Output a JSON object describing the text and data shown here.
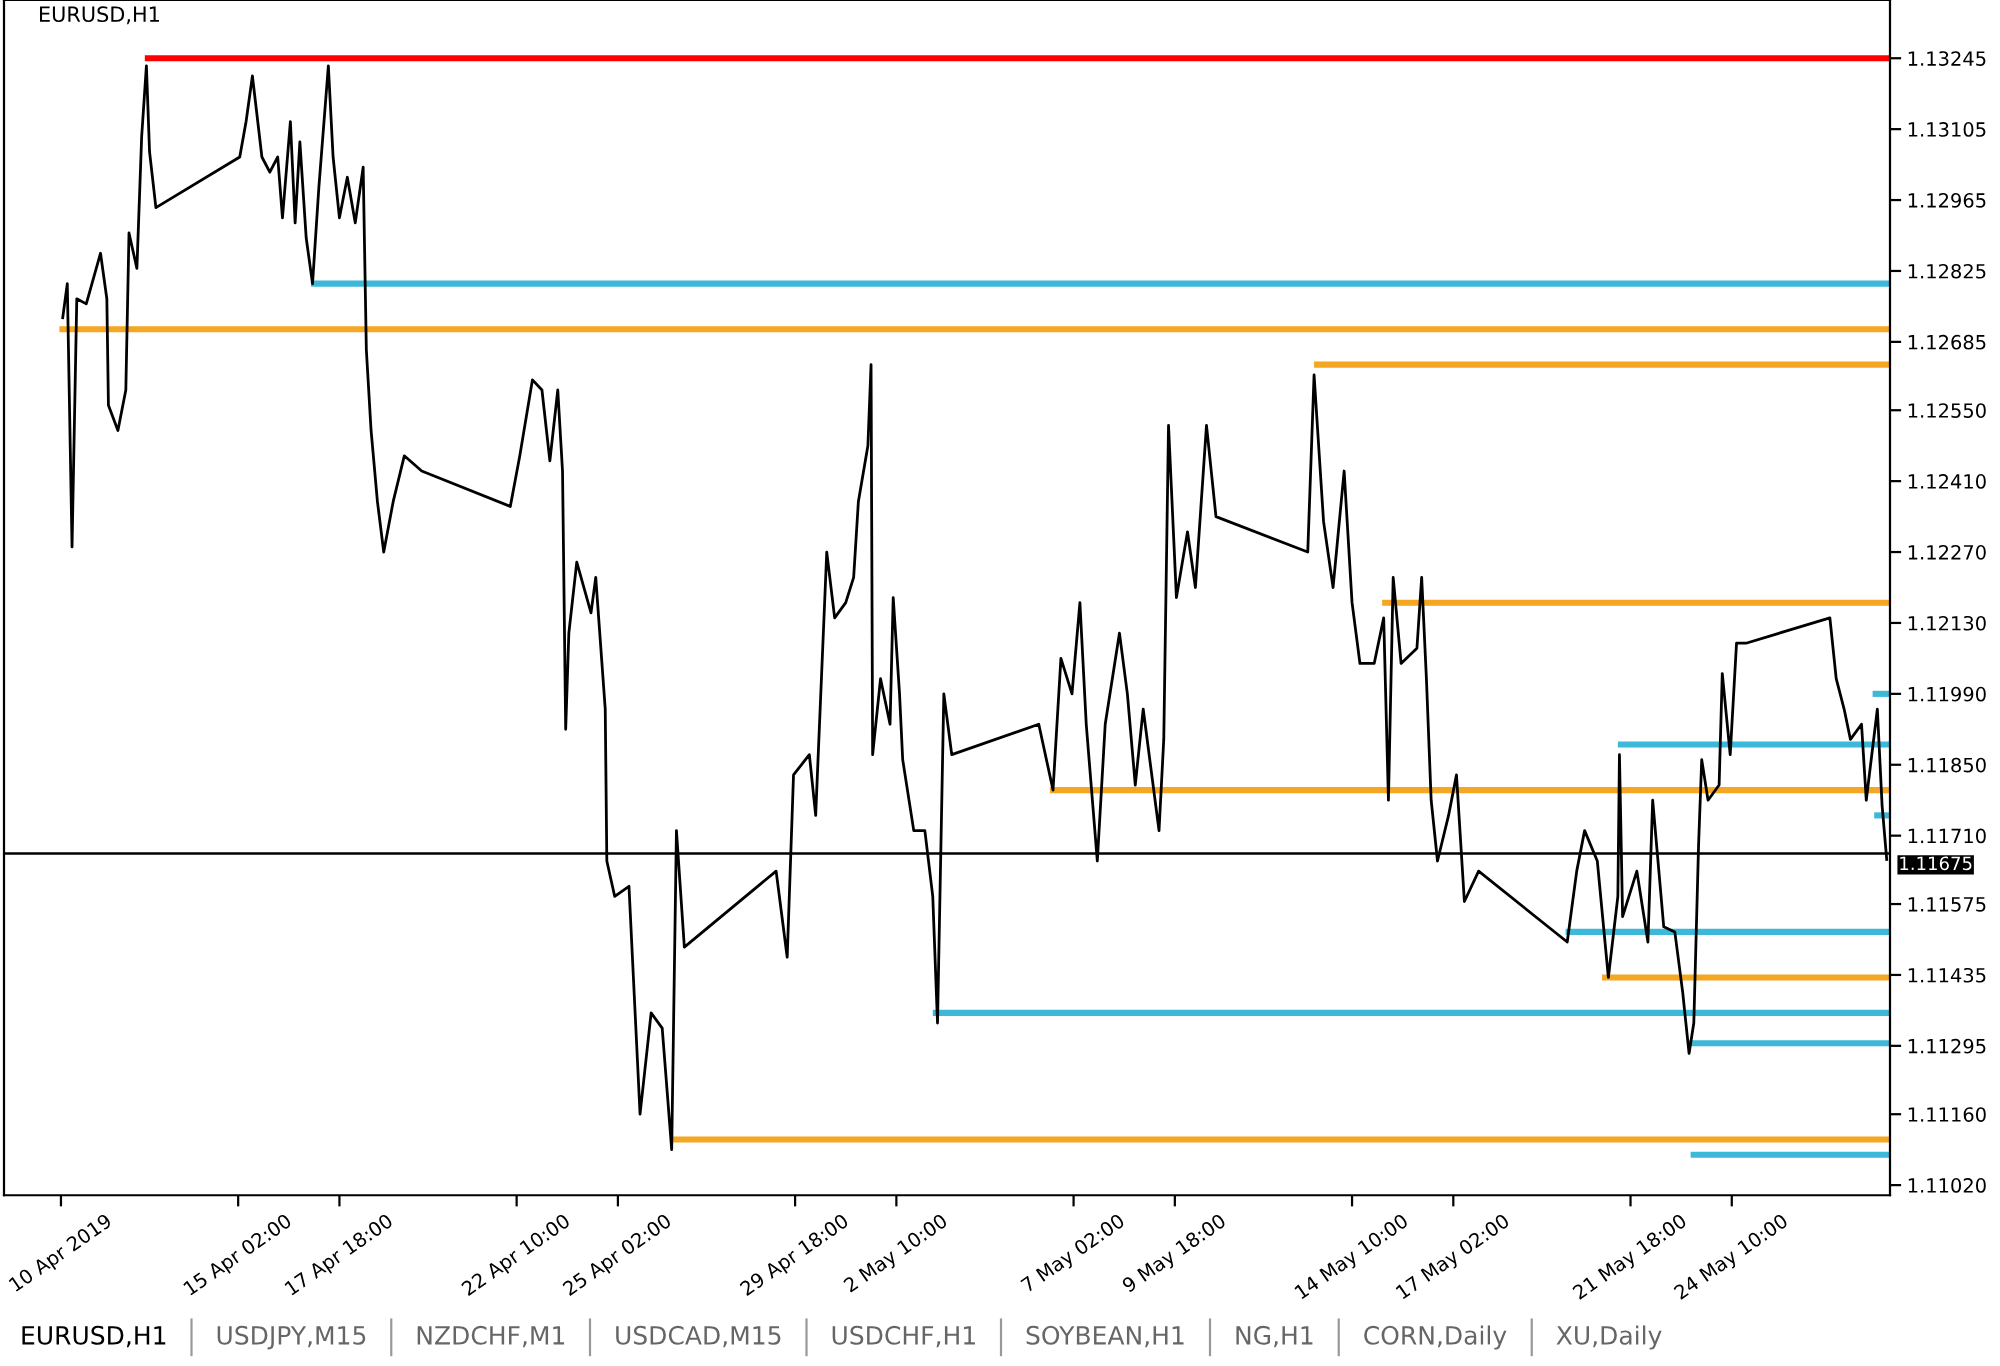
{
  "chart_data": {
    "type": "line",
    "title": "EURUSD,H1",
    "xlim": [
      "2019-04-08T22:00",
      "2019-05-28T14:00"
    ],
    "xticks": [
      {
        "value": "2019-04-10T10:00",
        "label": "10 Apr 2019"
      },
      {
        "value": "2019-04-15T02:00",
        "label": "15 Apr 02:00"
      },
      {
        "value": "2019-04-17T18:00",
        "label": "17 Apr 18:00"
      },
      {
        "value": "2019-04-22T10:00",
        "label": "22 Apr 10:00"
      },
      {
        "value": "2019-04-25T02:00",
        "label": "25 Apr 02:00"
      },
      {
        "value": "2019-04-29T18:00",
        "label": "29 Apr 18:00"
      },
      {
        "value": "2019-05-02T10:00",
        "label": "2 May 10:00"
      },
      {
        "value": "2019-05-07T02:00",
        "label": "7 May 02:00"
      },
      {
        "value": "2019-05-09T18:00",
        "label": "9 May 18:00"
      },
      {
        "value": "2019-05-14T10:00",
        "label": "14 May 10:00"
      },
      {
        "value": "2019-05-17T02:00",
        "label": "17 May 02:00"
      },
      {
        "value": "2019-05-21T18:00",
        "label": "21 May 18:00"
      },
      {
        "value": "2019-05-24T10:00",
        "label": "24 May 10:00"
      }
    ],
    "ylim": [
      1.11,
      1.1336
    ],
    "yticks": [
      {
        "value": 1.1102,
        "label": "1.11020"
      },
      {
        "value": 1.1116,
        "label": "1.11160"
      },
      1.11295,
      1.11435,
      1.11575,
      {
        "value": 1.1171,
        "label": "1.11710"
      },
      {
        "value": 1.1185,
        "label": "1.11850"
      },
      {
        "value": 1.1199,
        "label": "1.11990"
      },
      {
        "value": 1.1213,
        "label": "1.12130"
      },
      {
        "value": 1.1227,
        "label": "1.12270"
      },
      {
        "value": 1.1241,
        "label": "1.12410"
      },
      {
        "value": 1.1255,
        "label": "1.12550"
      },
      1.12685,
      1.12825,
      1.12965,
      1.13105,
      1.13245
    ],
    "grid": false,
    "ref_lines": [
      {
        "axis": "y",
        "value": 1.11675,
        "label": "1.11675",
        "color": "#000000"
      }
    ],
    "series": [
      {
        "color": "#000000",
        "x": [
          "2019-04-10T11:00",
          "2019-04-10T14:00",
          "2019-04-10T17:00",
          "2019-04-10T20:00",
          "2019-04-11T02:00",
          "2019-04-11T11:00",
          "2019-04-11T15:00",
          "2019-04-11T16:00",
          "2019-04-11T22:00",
          "2019-04-12T03:00",
          "2019-04-12T05:00",
          "2019-04-12T10:00",
          "2019-04-12T13:00",
          "2019-04-12T16:00",
          "2019-04-12T18:00",
          "2019-04-12T22:00",
          "2019-04-15T03:00",
          "2019-04-15T07:00",
          "2019-04-15T11:00",
          "2019-04-15T17:00",
          "2019-04-15T22:00",
          "2019-04-16T03:00",
          "2019-04-16T06:00",
          "2019-04-16T11:00",
          "2019-04-16T14:00",
          "2019-04-16T17:00",
          "2019-04-16T21:00",
          "2019-04-17T01:00",
          "2019-04-17T05:00",
          "2019-04-17T11:00",
          "2019-04-17T14:00",
          "2019-04-17T18:00",
          "2019-04-17T23:00",
          "2019-04-18T04:00",
          "2019-04-18T09:00",
          "2019-04-18T11:00",
          "2019-04-18T14:00",
          "2019-04-18T18:00",
          "2019-04-18T22:00",
          "2019-04-19T04:00",
          "2019-04-19T11:00",
          "2019-04-19T22:00",
          "2019-04-22T06:00",
          "2019-04-22T12:00",
          "2019-04-22T20:00",
          "2019-04-23T02:00",
          "2019-04-23T07:00",
          "2019-04-23T12:00",
          "2019-04-23T15:00",
          "2019-04-23T17:00",
          "2019-04-23T19:00",
          "2019-04-24T00:00",
          "2019-04-24T09:00",
          "2019-04-24T12:00",
          "2019-04-24T18:00",
          "2019-04-24T19:00",
          "2019-04-25T00:00",
          "2019-04-25T09:00",
          "2019-04-25T16:00",
          "2019-04-25T23:00",
          "2019-04-26T06:00",
          "2019-04-26T12:00",
          "2019-04-26T15:00",
          "2019-04-26T20:00",
          "2019-04-29T06:00",
          "2019-04-29T13:00",
          "2019-04-29T17:00",
          "2019-04-30T03:00",
          "2019-04-30T07:00",
          "2019-04-30T14:00",
          "2019-04-30T19:00",
          "2019-05-01T02:00",
          "2019-05-01T07:00",
          "2019-05-01T10:00",
          "2019-05-01T16:00",
          "2019-05-01T18:00",
          "2019-05-01T19:00",
          "2019-05-02T00:00",
          "2019-05-02T06:00",
          "2019-05-02T08:00",
          "2019-05-02T12:00",
          "2019-05-02T14:00",
          "2019-05-02T21:00",
          "2019-05-03T04:00",
          "2019-05-03T09:00",
          "2019-05-03T12:00",
          "2019-05-03T16:00",
          "2019-05-03T21:00",
          "2019-05-06T04:00",
          "2019-05-06T13:00",
          "2019-05-06T18:00",
          "2019-05-07T01:00",
          "2019-05-07T06:00",
          "2019-05-07T10:00",
          "2019-05-07T17:00",
          "2019-05-07T22:00",
          "2019-05-08T07:00",
          "2019-05-08T12:00",
          "2019-05-08T17:00",
          "2019-05-08T22:00",
          "2019-05-09T08:00",
          "2019-05-09T11:00",
          "2019-05-09T14:00",
          "2019-05-09T19:00",
          "2019-05-10T02:00",
          "2019-05-10T07:00",
          "2019-05-10T14:00",
          "2019-05-10T20:00",
          "2019-05-13T06:00",
          "2019-05-13T10:00",
          "2019-05-13T16:00",
          "2019-05-13T22:00",
          "2019-05-14T05:00",
          "2019-05-14T10:00",
          "2019-05-14T15:00",
          "2019-05-15T00:00",
          "2019-05-15T06:00",
          "2019-05-15T09:00",
          "2019-05-15T12:00",
          "2019-05-15T17:00",
          "2019-05-16T03:00",
          "2019-05-16T06:00",
          "2019-05-16T09:00",
          "2019-05-16T12:00",
          "2019-05-16T16:00",
          "2019-05-16T23:00",
          "2019-05-17T04:00",
          "2019-05-17T09:00",
          "2019-05-17T18:00",
          "2019-05-20T02:00",
          "2019-05-20T08:00",
          "2019-05-20T13:00",
          "2019-05-20T21:00",
          "2019-05-21T04:00",
          "2019-05-21T10:00",
          "2019-05-21T11:00",
          "2019-05-21T13:00",
          "2019-05-21T22:00",
          "2019-05-22T05:00",
          "2019-05-22T08:00",
          "2019-05-22T15:00",
          "2019-05-22T22:00",
          "2019-05-23T03:00",
          "2019-05-23T07:00",
          "2019-05-23T10:00",
          "2019-05-23T13:00",
          "2019-05-23T15:00",
          "2019-05-23T19:00",
          "2019-05-24T02:00",
          "2019-05-24T04:00",
          "2019-05-24T09:00",
          "2019-05-24T13:00",
          "2019-05-24T19:00",
          "2019-05-27T00:00",
          "2019-05-27T04:00",
          "2019-05-27T09:00",
          "2019-05-27T13:00",
          "2019-05-27T20:00",
          "2019-05-27T23:00",
          "2019-05-28T06:00",
          "2019-05-28T09:00",
          "2019-05-28T12:00"
        ],
        "values": [
          1.1273,
          1.128,
          1.1228,
          1.1277,
          1.1276,
          1.1286,
          1.1277,
          1.1256,
          1.1251,
          1.1259,
          1.129,
          1.1283,
          1.1309,
          1.1323,
          1.1306,
          1.1295,
          1.1305,
          1.1312,
          1.1321,
          1.1305,
          1.1302,
          1.1305,
          1.1293,
          1.1312,
          1.1292,
          1.1308,
          1.1289,
          1.128,
          1.1299,
          1.1323,
          1.1305,
          1.1293,
          1.1301,
          1.1292,
          1.1303,
          1.1267,
          1.1251,
          1.1237,
          1.1227,
          1.1237,
          1.1246,
          1.1243,
          1.1236,
          1.1246,
          1.1261,
          1.1259,
          1.1245,
          1.1259,
          1.1243,
          1.1192,
          1.1211,
          1.1225,
          1.1215,
          1.1222,
          1.1196,
          1.1166,
          1.1159,
          1.1161,
          1.1116,
          1.1136,
          1.1133,
          1.1109,
          1.1172,
          1.1149,
          1.1164,
          1.1147,
          1.1183,
          1.1187,
          1.1175,
          1.1227,
          1.1214,
          1.1217,
          1.1222,
          1.1237,
          1.1248,
          1.1264,
          1.1187,
          1.1202,
          1.1193,
          1.1218,
          1.1199,
          1.1186,
          1.1172,
          1.1172,
          1.1159,
          1.1134,
          1.1199,
          1.1187,
          1.1193,
          1.118,
          1.1206,
          1.1199,
          1.1217,
          1.1193,
          1.1166,
          1.1193,
          1.1211,
          1.1199,
          1.1181,
          1.1196,
          1.1172,
          1.119,
          1.1252,
          1.1218,
          1.1231,
          1.122,
          1.1252,
          1.1234,
          1.1227,
          1.1262,
          1.1233,
          1.122,
          1.1243,
          1.1217,
          1.1205,
          1.1205,
          1.1214,
          1.1178,
          1.1222,
          1.1205,
          1.1208,
          1.1222,
          1.1202,
          1.1178,
          1.1166,
          1.1175,
          1.1183,
          1.1158,
          1.1164,
          1.115,
          1.1164,
          1.1172,
          1.1166,
          1.1143,
          1.1159,
          1.1187,
          1.1155,
          1.1164,
          1.115,
          1.1178,
          1.1153,
          1.1152,
          1.114,
          1.1128,
          1.1134,
          1.1169,
          1.1186,
          1.1178,
          1.1181,
          1.1203,
          1.1187,
          1.1209,
          1.1209,
          1.1214,
          1.1202,
          1.1196,
          1.119,
          1.1193,
          1.1178,
          1.1196,
          1.1177,
          1.1166
        ]
      },
      {
        "color": "#ff0000",
        "x": [
          "2019-04-12T15:00",
          "2019-05-28T14:00"
        ],
        "values": [
          1.13245,
          1.13245
        ]
      },
      {
        "color": "#3cb8d8",
        "x": [
          "2019-04-17T00:00",
          "2019-05-28T14:00"
        ],
        "values": [
          1.128,
          1.128
        ]
      },
      {
        "color": "#f5a623",
        "x": [
          "2019-04-10T09:00",
          "2019-05-28T14:00"
        ],
        "values": [
          1.1271,
          1.1271
        ]
      },
      {
        "color": "#f5a623",
        "x": [
          "2019-05-13T10:00",
          "2019-05-28T14:00"
        ],
        "values": [
          1.1264,
          1.1264
        ]
      },
      {
        "color": "#f5a623",
        "x": [
          "2019-05-15T05:00",
          "2019-05-28T14:00"
        ],
        "values": [
          1.1217,
          1.1217
        ]
      },
      {
        "color": "#3cb8d8",
        "x": [
          "2019-05-28T03:00",
          "2019-05-28T14:00"
        ],
        "values": [
          1.1199,
          1.1199
        ]
      },
      {
        "color": "#3cb8d8",
        "x": [
          "2019-05-21T10:00",
          "2019-05-28T14:00"
        ],
        "values": [
          1.1189,
          1.1189
        ]
      },
      {
        "color": "#f5a623",
        "x": [
          "2019-05-06T11:00",
          "2019-05-28T14:00"
        ],
        "values": [
          1.118,
          1.118
        ]
      },
      {
        "color": "#3cb8d8",
        "x": [
          "2019-05-28T04:00",
          "2019-05-28T14:00"
        ],
        "values": [
          1.1175,
          1.1175
        ]
      },
      {
        "color": "#3cb8d8",
        "x": [
          "2019-05-20T01:00",
          "2019-05-28T14:00"
        ],
        "values": [
          1.1152,
          1.1152
        ]
      },
      {
        "color": "#f5a623",
        "x": [
          "2019-05-21T00:00",
          "2019-05-28T14:00"
        ],
        "values": [
          1.1143,
          1.1143
        ]
      },
      {
        "color": "#3cb8d8",
        "x": [
          "2019-05-03T09:00",
          "2019-05-28T14:00"
        ],
        "values": [
          1.1136,
          1.1136
        ]
      },
      {
        "color": "#3cb8d8",
        "x": [
          "2019-05-23T06:00",
          "2019-05-28T14:00"
        ],
        "values": [
          1.113,
          1.113
        ]
      },
      {
        "color": "#f5a623",
        "x": [
          "2019-04-26T11:00",
          "2019-05-28T14:00"
        ],
        "values": [
          1.1111,
          1.1111
        ]
      },
      {
        "color": "#3cb8d8",
        "x": [
          "2019-05-23T08:00",
          "2019-05-28T14:00"
        ],
        "values": [
          1.1108,
          1.1108
        ]
      }
    ],
    "annotations": [
      "EURUSD,H1",
      "USDJPY,M15",
      "NZDCHF,M1",
      "USDCAD,M15",
      "USDCHF,H1",
      "SOYBEAN,H1",
      "NG,H1",
      "CORN,Daily",
      "XU,Daily"
    ]
  }
}
